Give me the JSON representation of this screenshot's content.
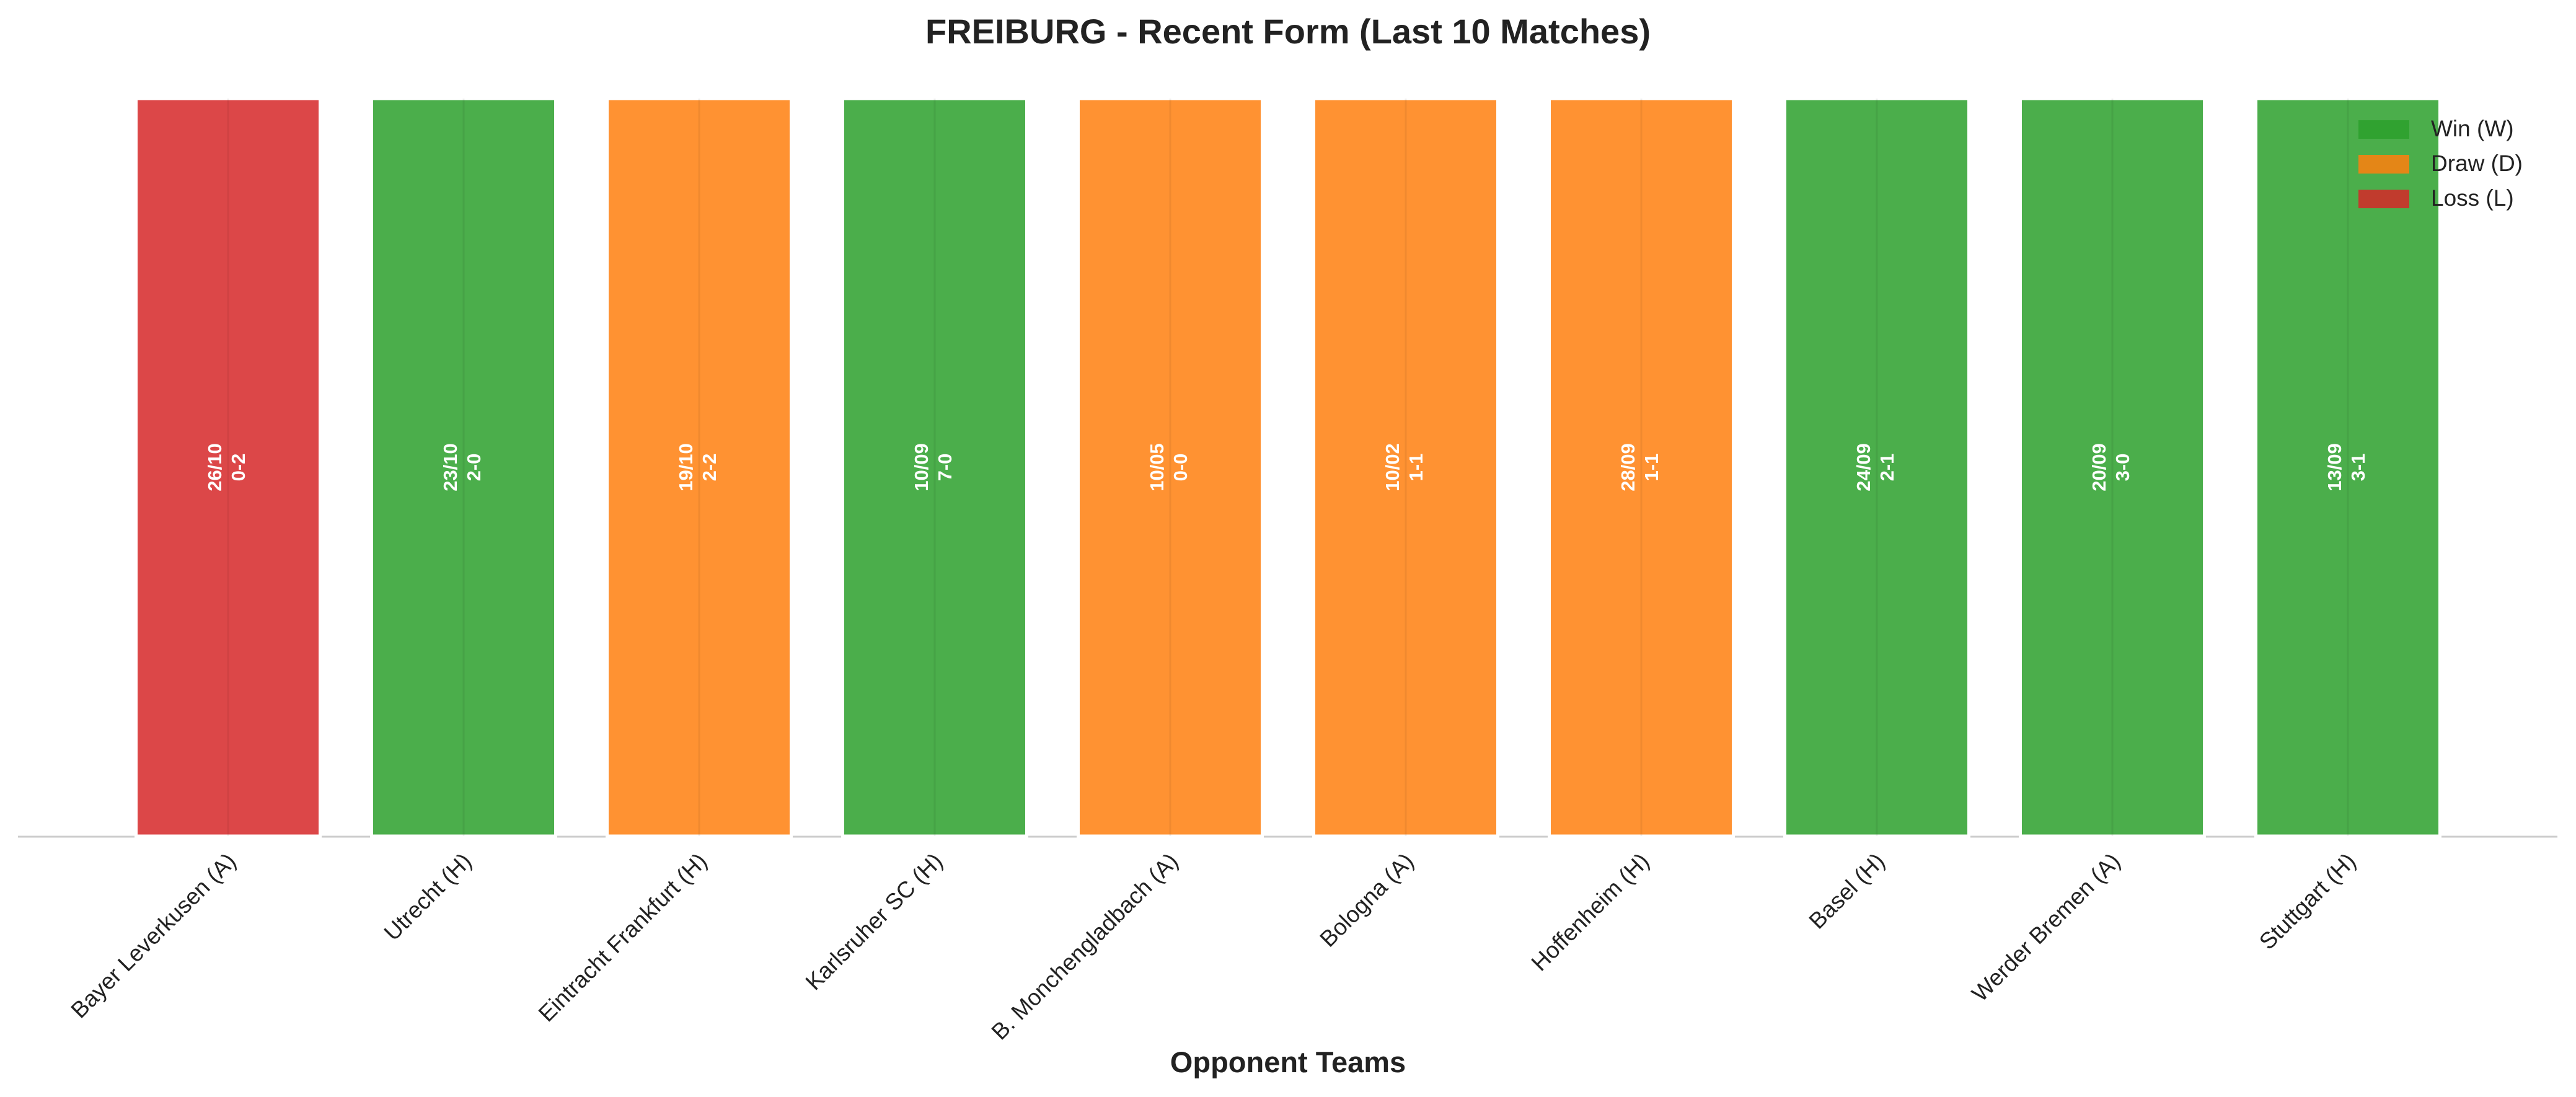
{
  "chart_data": {
    "type": "bar",
    "title": "FREIBURG - Recent Form (Last 10 Matches)",
    "x_label": "Opponent Teams",
    "categories": [
      "Bayer Leverkusen (A)",
      "Utrecht (H)",
      "Eintracht Frankfurt (H)",
      "Karlsruher SC (H)",
      "B. Monchengladbach (A)",
      "Bologna (A)",
      "Hoffenheim (H)",
      "Basel (H)",
      "Werder Bremen (A)",
      "Stuttgart (H)"
    ],
    "values": [
      1,
      1,
      1,
      1,
      1,
      1,
      1,
      1,
      1,
      1
    ],
    "dates": [
      "26/10",
      "23/10",
      "19/10",
      "10/09",
      "10/05",
      "10/02",
      "28/09",
      "24/09",
      "20/09",
      "13/09"
    ],
    "scores": [
      "0-2",
      "2-0",
      "2-2",
      "7-0",
      "0-0",
      "1-1",
      "1-1",
      "2-1",
      "3-0",
      "3-1"
    ],
    "colors": [
      "#d62728",
      "#2ca02c",
      "#ff7f0e",
      "#2ca02c",
      "#ff7f0e",
      "#ff7f0e",
      "#ff7f0e",
      "#2ca02c",
      "#2ca02c",
      "#2ca02c"
    ],
    "ylim": [
      0,
      1
    ],
    "legend_position": "upper right",
    "legend": [
      {
        "name": "Win (W)",
        "color": "#2ca02c"
      },
      {
        "name": "Draw (D)",
        "color": "#ff7f0e"
      },
      {
        "name": "Loss (L)",
        "color": "#d62728"
      }
    ]
  }
}
